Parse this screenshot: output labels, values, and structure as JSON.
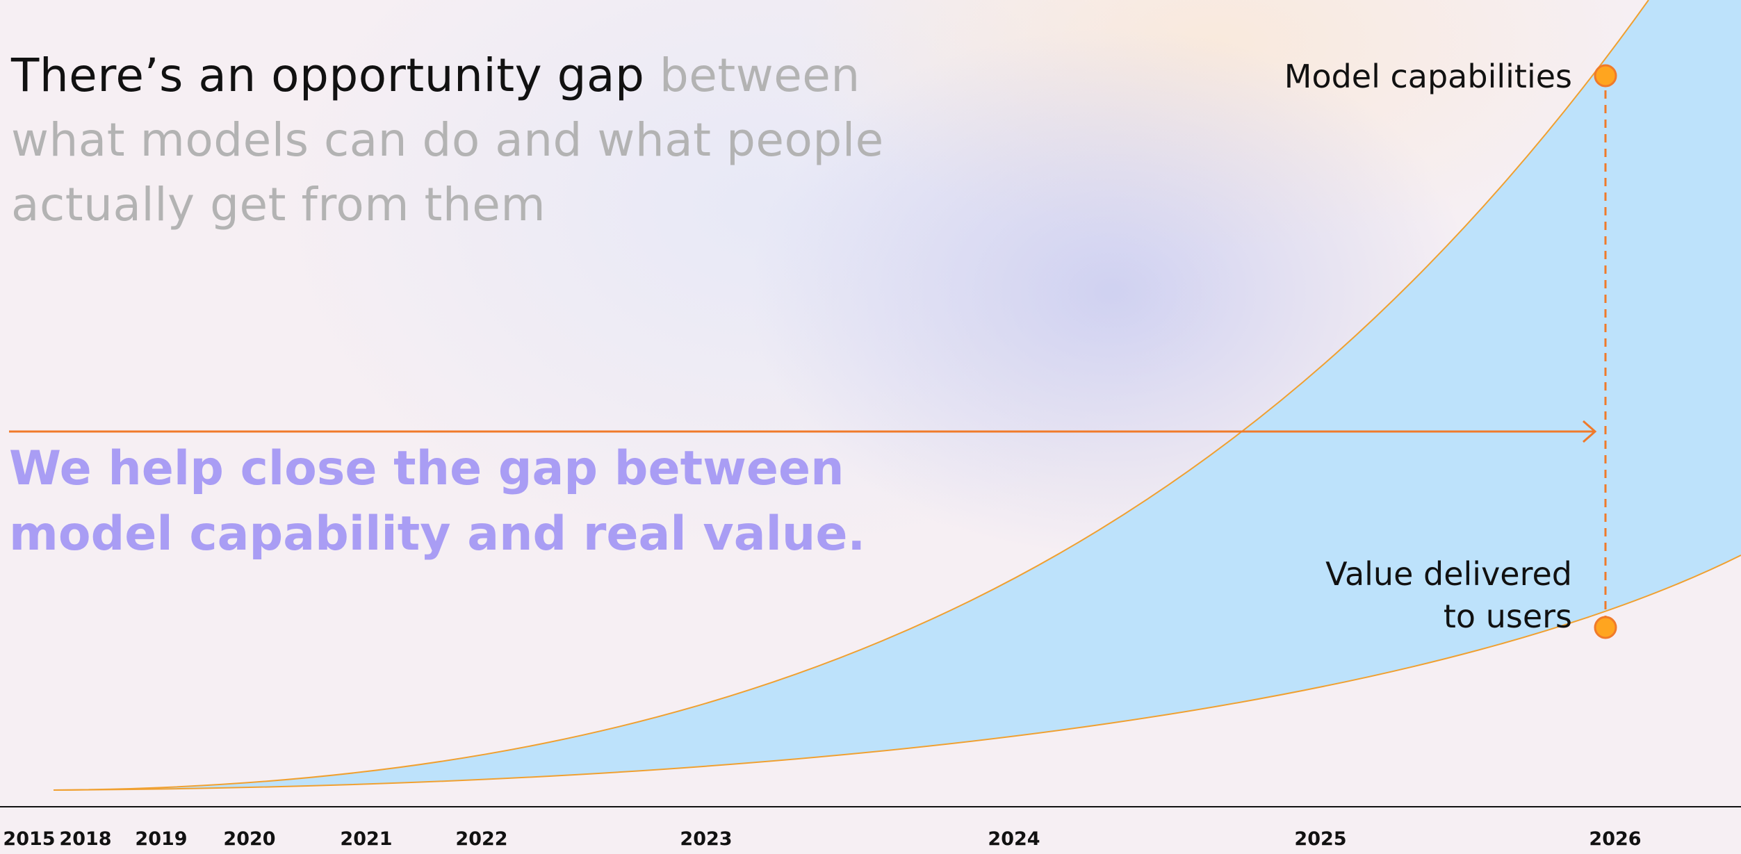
{
  "headline": {
    "strong": "There’s an opportunity gap",
    "muted": "between what models can do and what people actually get from them"
  },
  "subheadline": "We help close the gap between model capability and real value.",
  "labels": {
    "model": "Model capabilities",
    "value_line1": "Value delivered",
    "value_line2": "to users"
  },
  "years": [
    "2015",
    "2018",
    "2019",
    "2020",
    "2021",
    "2022",
    "2023",
    "2024",
    "2025",
    "2026"
  ]
}
